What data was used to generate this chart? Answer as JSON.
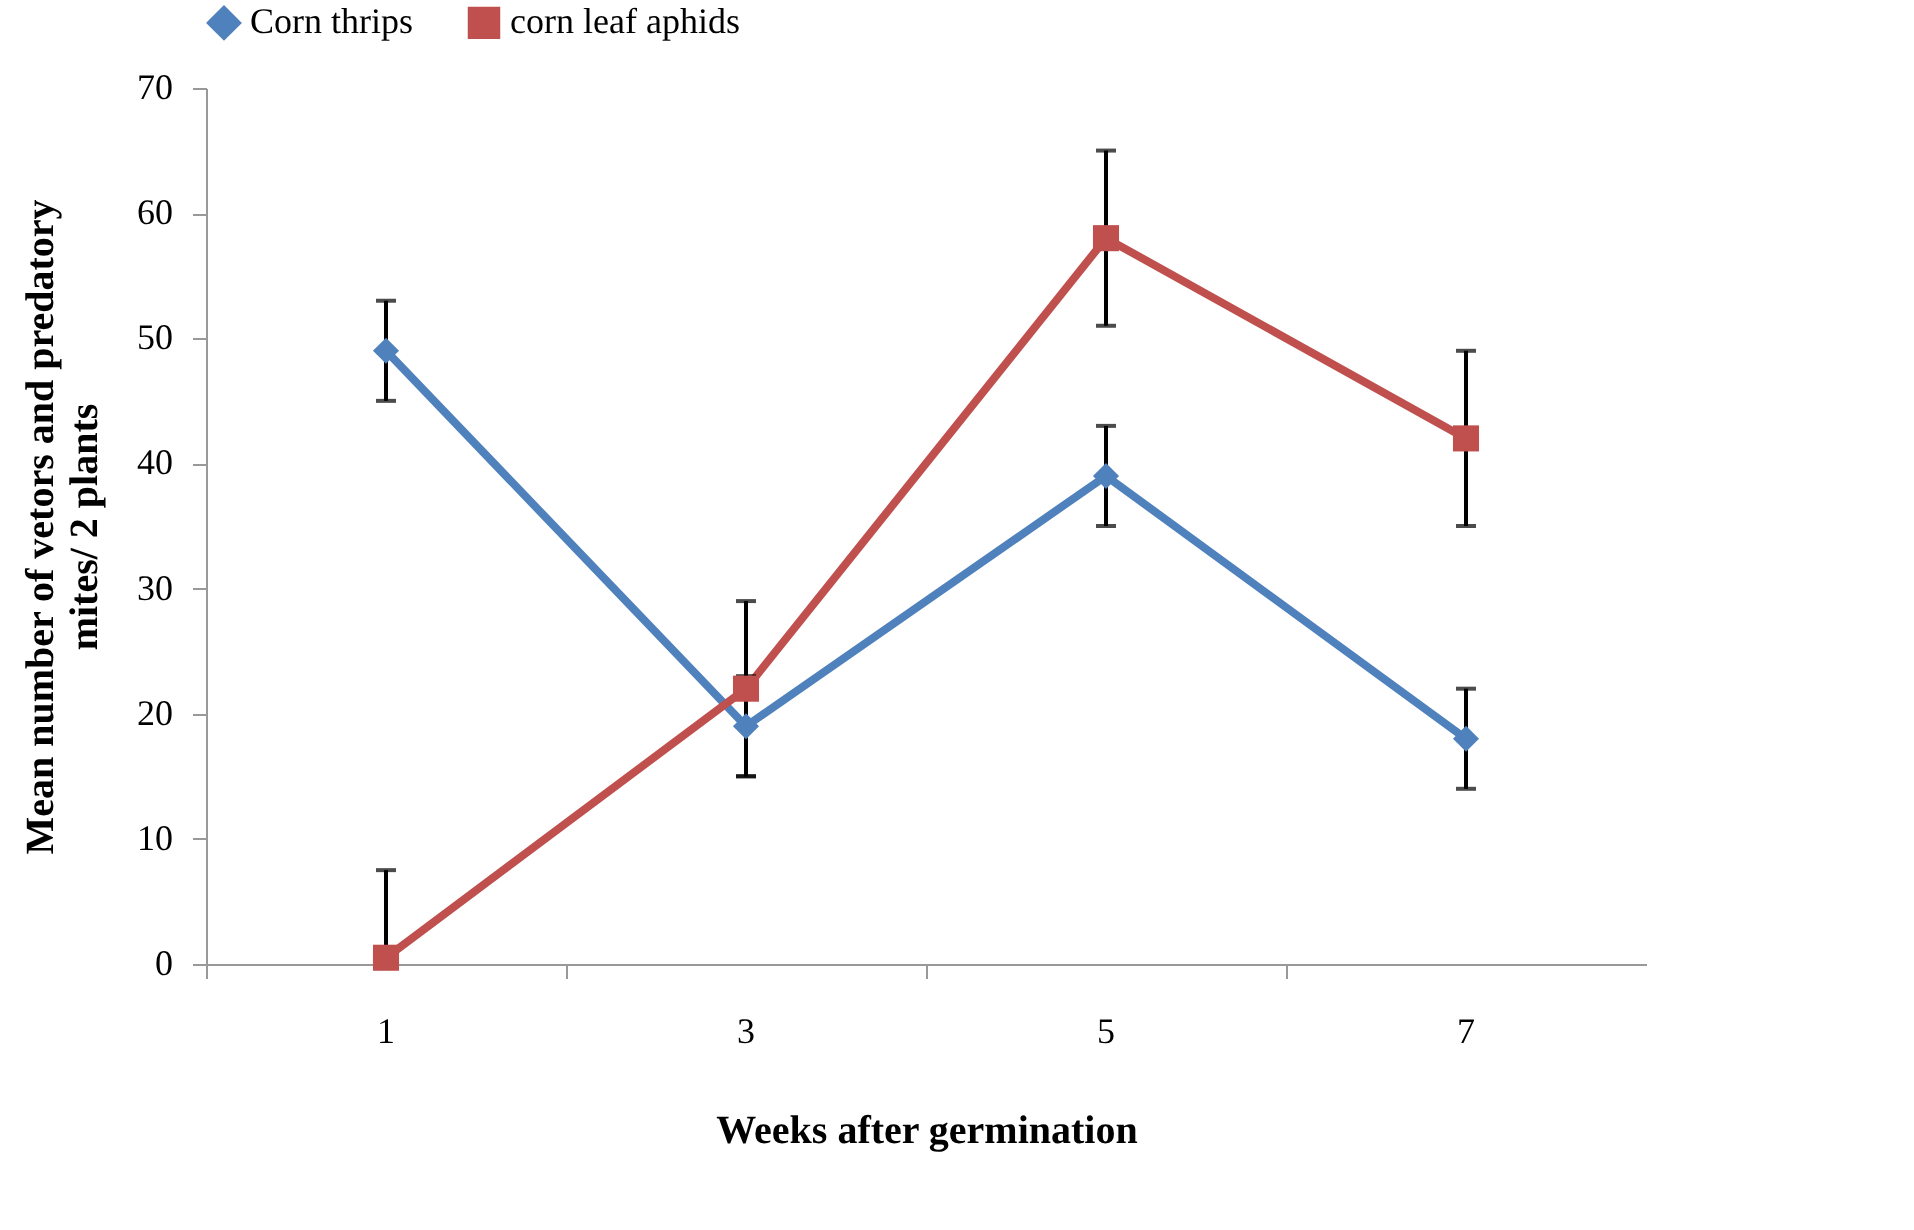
{
  "chart_data": {
    "type": "line",
    "xlabel": "Weeks  after germination",
    "ylabel": "Mean number of vetors and predatory mites/ 2 plants",
    "categories": [
      "1",
      "3",
      "5",
      "7"
    ],
    "series": [
      {
        "name": "Corn thrips",
        "color": "#4f81bd",
        "marker": "diamond",
        "values": [
          49,
          19,
          39,
          18
        ],
        "errors": [
          4,
          4,
          4,
          4
        ]
      },
      {
        "name": "corn leaf aphids",
        "color": "#c0504d",
        "marker": "square",
        "values": [
          0.5,
          22,
          58,
          42
        ],
        "errors": [
          [
            0.5,
            7.5
          ],
          7,
          7,
          7
        ]
      }
    ],
    "ylim": [
      0,
      70
    ],
    "yticks": [
      0,
      10,
      20,
      30,
      40,
      50,
      60,
      70
    ],
    "grid": false,
    "legend": "top",
    "line_style": "solid"
  }
}
